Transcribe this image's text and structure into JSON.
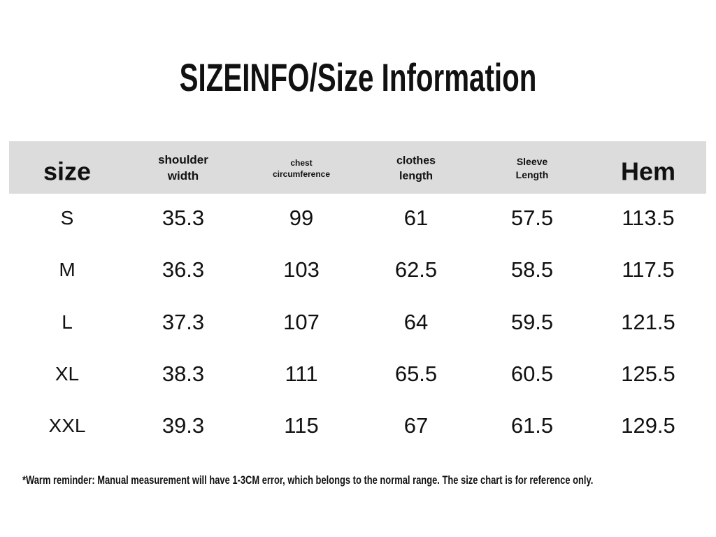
{
  "header": {
    "title": "SIZEINFO/Size Information"
  },
  "table": {
    "columns": [
      "size",
      "shoulder width",
      "chest circumference",
      "clothes length",
      "Sleeve Length",
      "Hem"
    ],
    "rows": [
      [
        "S",
        35.3,
        99,
        61,
        57.5,
        113.5
      ],
      [
        "M",
        36.3,
        103,
        62.5,
        58.5,
        117.5
      ],
      [
        "L",
        37.3,
        107,
        64,
        59.5,
        121.5
      ],
      [
        "XL",
        38.3,
        111,
        65.5,
        60.5,
        125.5
      ],
      [
        "XXL",
        39.3,
        115,
        67,
        61.5,
        129.5
      ]
    ]
  },
  "footnote": "*Warm reminder: Manual measurement will have 1-3CM error, which belongs to the normal range. The size chart is for reference only."
}
